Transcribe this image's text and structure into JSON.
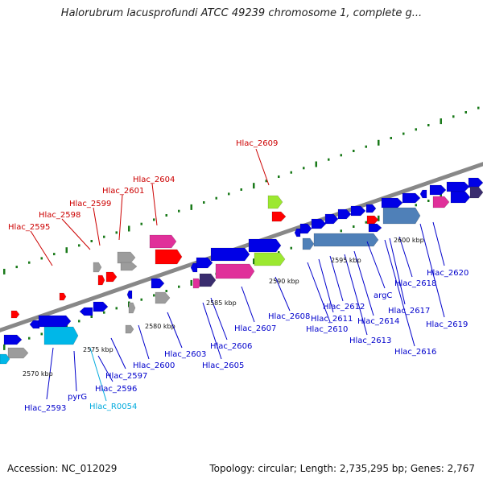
{
  "title": "Halorubrum lacusprofundi ATCC 49239 chromosome 1, complete g...",
  "accession": "Accession: NC_012029",
  "summary": "Topology: circular; Length: 2,735,295 bp; Genes: 2,767",
  "colors": {
    "backbone": "#888888",
    "cds": "#0000e6",
    "pseudo": "#9c9c9c",
    "rna": "#00b7e8",
    "hypothetical": "#ff0000",
    "operon": "#4f80b8",
    "dark": "#3a2d6e",
    "pink": "#e0309a",
    "green": "#9ce830",
    "tick": "#1a7a1a",
    "label_red": "#cc0000",
    "label_blue": "#0000cc",
    "label_cyan": "#00aadd"
  },
  "scale_labels": [
    "2570 kbp",
    "2575 kbp",
    "2580 kbp",
    "2585 kbp",
    "2590 kbp",
    "2595 kbp",
    "2600 kbp"
  ],
  "labels_above": [
    "Hlac_2595",
    "Hlac_2598",
    "Hlac_2599",
    "Hlac_2601",
    "Hlac_2604",
    "Hlac_2609"
  ],
  "labels_below": [
    "Hlac_2593",
    "pyrG",
    "Hlac_R0054",
    "Hlac_2596",
    "Hlac_2597",
    "Hlac_2600",
    "Hlac_2603",
    "Hlac_2605",
    "Hlac_2606",
    "Hlac_2607",
    "Hlac_2608",
    "Hlac_2610",
    "Hlac_2611",
    "Hlac_2612",
    "Hlac_2613",
    "Hlac_2614",
    "argC",
    "Hlac_2616",
    "Hlac_2617",
    "Hlac_2618",
    "Hlac_2619",
    "Hlac_2620"
  ]
}
